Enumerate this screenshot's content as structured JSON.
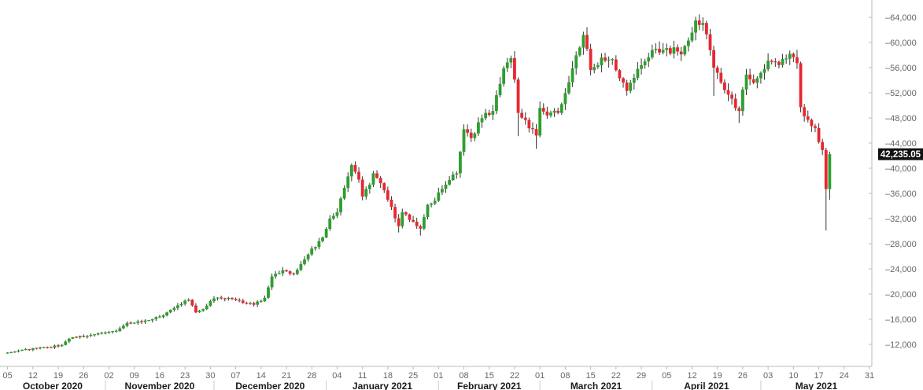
{
  "chart_data": {
    "type": "candlestick",
    "title": "",
    "xlabel": "",
    "ylabel": "",
    "ylim": [
      8500,
      66000
    ],
    "xlim": [
      "2020-10-04",
      "2021-05-31"
    ],
    "y_axis_position": "right",
    "grid": false,
    "colors": {
      "up": "#2e9e2e",
      "down": "#e8272f",
      "axis": "#bbbbbb",
      "last_price_bg": "#111111"
    },
    "last_price": {
      "value": 42235.05,
      "label": "42,235.05"
    },
    "y_ticks": [
      {
        "value": 12000,
        "label": "12,000"
      },
      {
        "value": 16000,
        "label": "16,000"
      },
      {
        "value": 20000,
        "label": "20,000"
      },
      {
        "value": 24000,
        "label": "24,000"
      },
      {
        "value": 28000,
        "label": "28,000"
      },
      {
        "value": 32000,
        "label": "32,000"
      },
      {
        "value": 36000,
        "label": "36,000"
      },
      {
        "value": 40000,
        "label": "40,000"
      },
      {
        "value": 44000,
        "label": "44,000"
      },
      {
        "value": 48000,
        "label": "48,000"
      },
      {
        "value": 52000,
        "label": "52,000"
      },
      {
        "value": 56000,
        "label": "56,000"
      },
      {
        "value": 60000,
        "label": "60,000"
      },
      {
        "value": 64000,
        "label": "64,000"
      }
    ],
    "x_ticks": [
      {
        "date": "2020-10-05",
        "label": "05"
      },
      {
        "date": "2020-10-12",
        "label": "12"
      },
      {
        "date": "2020-10-19",
        "label": "19"
      },
      {
        "date": "2020-10-26",
        "label": "26"
      },
      {
        "date": "2020-11-02",
        "label": "02"
      },
      {
        "date": "2020-11-09",
        "label": "09"
      },
      {
        "date": "2020-11-16",
        "label": "16"
      },
      {
        "date": "2020-11-23",
        "label": "23"
      },
      {
        "date": "2020-11-30",
        "label": "30"
      },
      {
        "date": "2020-12-07",
        "label": "07"
      },
      {
        "date": "2020-12-14",
        "label": "14"
      },
      {
        "date": "2020-12-21",
        "label": "21"
      },
      {
        "date": "2020-12-28",
        "label": "28"
      },
      {
        "date": "2021-01-04",
        "label": "04"
      },
      {
        "date": "2021-01-11",
        "label": "11"
      },
      {
        "date": "2021-01-18",
        "label": "18"
      },
      {
        "date": "2021-01-25",
        "label": "25"
      },
      {
        "date": "2021-02-01",
        "label": "01"
      },
      {
        "date": "2021-02-08",
        "label": "08"
      },
      {
        "date": "2021-02-15",
        "label": "15"
      },
      {
        "date": "2021-02-22",
        "label": "22"
      },
      {
        "date": "2021-03-01",
        "label": "01"
      },
      {
        "date": "2021-03-08",
        "label": "08"
      },
      {
        "date": "2021-03-15",
        "label": "15"
      },
      {
        "date": "2021-03-22",
        "label": "22"
      },
      {
        "date": "2021-03-29",
        "label": "29"
      },
      {
        "date": "2021-04-05",
        "label": "05"
      },
      {
        "date": "2021-04-12",
        "label": "12"
      },
      {
        "date": "2021-04-19",
        "label": "19"
      },
      {
        "date": "2021-04-26",
        "label": "26"
      },
      {
        "date": "2021-05-03",
        "label": "03"
      },
      {
        "date": "2021-05-10",
        "label": "10"
      },
      {
        "date": "2021-05-17",
        "label": "17"
      },
      {
        "date": "2021-05-24",
        "label": "24"
      },
      {
        "date": "2021-05-31",
        "label": "31"
      }
    ],
    "months": [
      {
        "start": "2020-10-01",
        "end": "2020-11-01",
        "label": "October 2020"
      },
      {
        "start": "2020-11-01",
        "end": "2020-12-01",
        "label": "November 2020"
      },
      {
        "start": "2020-12-01",
        "end": "2021-01-01",
        "label": "December 2020"
      },
      {
        "start": "2021-01-01",
        "end": "2021-02-01",
        "label": "January 2021"
      },
      {
        "start": "2021-02-01",
        "end": "2021-03-01",
        "label": "February 2021"
      },
      {
        "start": "2021-03-01",
        "end": "2021-04-01",
        "label": "March 2021"
      },
      {
        "start": "2021-04-01",
        "end": "2021-05-01",
        "label": "April 2021"
      },
      {
        "start": "2021-05-01",
        "end": "2021-06-01",
        "label": "May 2021"
      }
    ],
    "anchors": [
      [
        "2020-10-04",
        10600
      ],
      [
        "2020-10-10",
        11200
      ],
      [
        "2020-10-16",
        11500
      ],
      [
        "2020-10-20",
        11900
      ],
      [
        "2020-10-22",
        12900
      ],
      [
        "2020-10-31",
        13800
      ],
      [
        "2020-11-04",
        14100
      ],
      [
        "2020-11-07",
        15400
      ],
      [
        "2020-11-12",
        15800
      ],
      [
        "2020-11-17",
        16600
      ],
      [
        "2020-11-21",
        18200
      ],
      [
        "2020-11-24",
        19100
      ],
      [
        "2020-11-26",
        17100
      ],
      [
        "2020-11-28",
        17600
      ],
      [
        "2020-12-01",
        19300
      ],
      [
        "2020-12-05",
        19400
      ],
      [
        "2020-12-09",
        18600
      ],
      [
        "2020-12-12",
        18300
      ],
      [
        "2020-12-15",
        19400
      ],
      [
        "2020-12-17",
        22800
      ],
      [
        "2020-12-20",
        23800
      ],
      [
        "2020-12-23",
        23200
      ],
      [
        "2020-12-27",
        26300
      ],
      [
        "2020-12-31",
        29000
      ],
      [
        "2021-01-02",
        32000
      ],
      [
        "2021-01-04",
        33000
      ],
      [
        "2021-01-08",
        40500
      ],
      [
        "2021-01-10",
        38200
      ],
      [
        "2021-01-11",
        35500
      ],
      [
        "2021-01-13",
        37400
      ],
      [
        "2021-01-14",
        39200
      ],
      [
        "2021-01-17",
        36500
      ],
      [
        "2021-01-21",
        30800
      ],
      [
        "2021-01-22",
        33000
      ],
      [
        "2021-01-27",
        30400
      ],
      [
        "2021-01-29",
        34200
      ],
      [
        "2021-01-30",
        34400
      ],
      [
        "2021-02-03",
        37400
      ],
      [
        "2021-02-06",
        39200
      ],
      [
        "2021-02-08",
        46200
      ],
      [
        "2021-02-10",
        44800
      ],
      [
        "2021-02-14",
        48800
      ],
      [
        "2021-02-16",
        49100
      ],
      [
        "2021-02-19",
        55900
      ],
      [
        "2021-02-21",
        57500
      ],
      [
        "2021-02-22",
        54100
      ],
      [
        "2021-02-23",
        48800
      ],
      [
        "2021-02-28",
        45200
      ],
      [
        "2021-03-01",
        49600
      ],
      [
        "2021-03-03",
        48400
      ],
      [
        "2021-03-06",
        48800
      ],
      [
        "2021-03-10",
        55900
      ],
      [
        "2021-03-13",
        61200
      ],
      [
        "2021-03-14",
        59000
      ],
      [
        "2021-03-15",
        55600
      ],
      [
        "2021-03-18",
        57600
      ],
      [
        "2021-03-21",
        57300
      ],
      [
        "2021-03-23",
        54300
      ],
      [
        "2021-03-25",
        52300
      ],
      [
        "2021-03-28",
        55800
      ],
      [
        "2021-04-01",
        58800
      ],
      [
        "2021-04-05",
        59100
      ],
      [
        "2021-04-09",
        58100
      ],
      [
        "2021-04-13",
        63500
      ],
      [
        "2021-04-15",
        63100
      ],
      [
        "2021-04-16",
        61300
      ],
      [
        "2021-04-18",
        56000
      ],
      [
        "2021-04-22",
        51700
      ],
      [
        "2021-04-25",
        49100
      ],
      [
        "2021-04-27",
        54900
      ],
      [
        "2021-04-29",
        53600
      ],
      [
        "2021-05-03",
        57100
      ],
      [
        "2021-05-06",
        56400
      ],
      [
        "2021-05-09",
        58200
      ],
      [
        "2021-05-11",
        56700
      ],
      [
        "2021-05-12",
        49700
      ],
      [
        "2021-05-15",
        46700
      ],
      [
        "2021-05-16",
        46400
      ],
      [
        "2021-05-18",
        42900
      ],
      [
        "2021-05-19",
        36700
      ],
      [
        "2021-05-20",
        42235.05
      ]
    ],
    "spikes": [
      [
        "2021-01-21",
        29800
      ],
      [
        "2021-01-27",
        29300
      ],
      [
        "2021-02-23",
        45100
      ],
      [
        "2021-02-28",
        43100
      ],
      [
        "2021-04-18",
        51500
      ],
      [
        "2021-04-25",
        47200
      ],
      [
        "2021-05-19",
        30100
      ],
      [
        "2021-05-20",
        35000
      ]
    ]
  }
}
